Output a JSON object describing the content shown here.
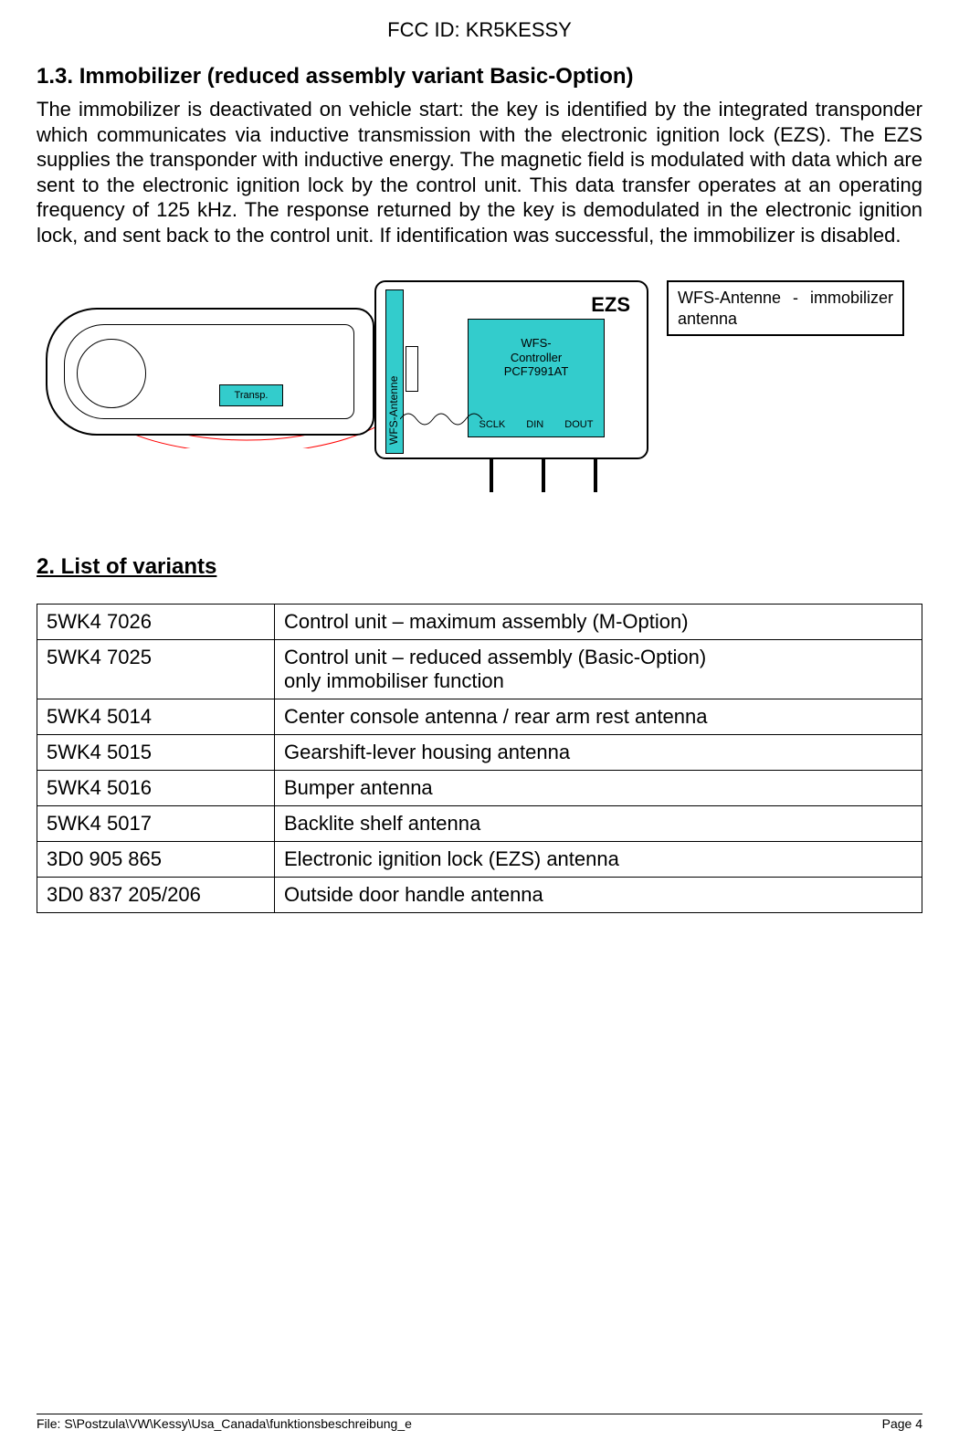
{
  "header": {
    "fcc": "FCC ID: KR5KESSY"
  },
  "section": {
    "heading": "1.3.    Immobilizer  (reduced assembly variant Basic-Option)",
    "paragraph": "The immobilizer is deactivated on vehicle start: the key is identified by the integrated transponder which communicates via inductive transmission with the electronic ignition lock (EZS). The EZS supplies the transponder with inductive energy. The magnetic field is modulated with data which are sent to the electronic ignition lock by the control unit. This data transfer operates at an operating frequency of 125 kHz. The response returned by the key is demodulated in the electronic ignition lock, and sent back to the control unit. If identification was successful, the immobilizer is disabled."
  },
  "diagram": {
    "ezs_label": "EZS",
    "antenna_label": "WFS-Antenne",
    "transp_label": "Transp.",
    "controller_line1": "WFS-",
    "controller_line2": "Controller",
    "controller_line3": "PCF7991AT",
    "pins": {
      "sclk": "SCLK",
      "din": "DIN",
      "dout": "DOUT"
    },
    "legend": "WFS-Antenne - immobilizer antenna",
    "accent_color": "#33cccc"
  },
  "variants": {
    "heading": "2. List of variants",
    "rows": [
      {
        "code": "5WK4 7026",
        "desc": "Control unit – maximum assembly (M-Option)"
      },
      {
        "code": "5WK4 7025",
        "desc": "Control unit – reduced assembly (Basic-Option)\nonly immobiliser function"
      },
      {
        "code": "5WK4 5014",
        "desc": "Center console antenna / rear arm rest antenna"
      },
      {
        "code": "5WK4 5015",
        "desc": "Gearshift-lever housing antenna"
      },
      {
        "code": "5WK4 5016",
        "desc": "Bumper antenna"
      },
      {
        "code": "5WK4 5017",
        "desc": "Backlite shelf antenna"
      },
      {
        "code": "3D0 905 865",
        "desc": "Electronic ignition lock (EZS) antenna"
      },
      {
        "code": "3D0 837 205/206",
        "desc": "Outside door handle antenna"
      }
    ]
  },
  "footer": {
    "file": "File: S\\Postzula\\VW\\Kessy\\Usa_Canada\\funktionsbeschreibung_e",
    "page": "Page 4"
  }
}
